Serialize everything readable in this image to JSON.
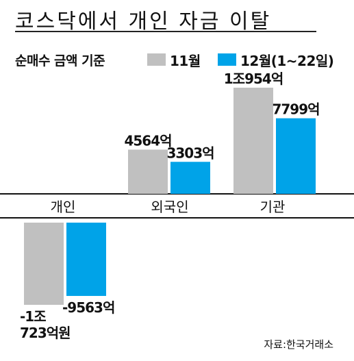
{
  "title": "코스닥에서 개인 자금 이탈",
  "legend": {
    "prefix": "순매수 금액 기준",
    "items": [
      {
        "label": "11월",
        "color": "#c0c0c0"
      },
      {
        "label": "12월(1~22일)",
        "color": "#00a3e8"
      }
    ]
  },
  "source": "자료:한국거래소",
  "chart_data": {
    "type": "bar",
    "title": "코스닥에서 개인 자금 이탈",
    "unit": "억원",
    "categories": [
      "개인",
      "외국인",
      "기관"
    ],
    "series": [
      {
        "name": "11월",
        "color": "#c0c0c0",
        "values": [
          -10723,
          4564,
          10954
        ],
        "labels": [
          "-1조\n723억원",
          "4564억",
          "1조954억"
        ]
      },
      {
        "name": "12월(1~22일)",
        "color": "#00a3e8",
        "values": [
          -9563,
          3303,
          7799
        ],
        "labels": [
          "-9563억",
          "3303억",
          "7799억"
        ]
      }
    ],
    "ylim": [
      -11500,
      11500
    ],
    "grid": false
  }
}
